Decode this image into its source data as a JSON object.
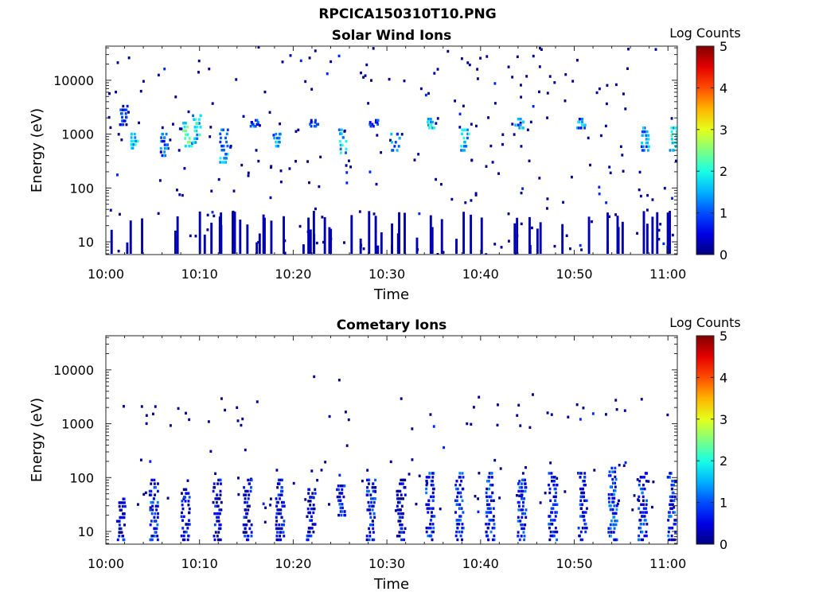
{
  "figure": {
    "title": "RPCICA150310T10.PNG"
  },
  "chart_data": [
    {
      "type": "heatmap",
      "title": "Solar Wind Ions",
      "xlabel": "Time",
      "ylabel": "Energy (eV)",
      "x_ticks": [
        "10:00",
        "10:10",
        "10:20",
        "10:30",
        "10:40",
        "10:50",
        "11:00"
      ],
      "y_ticks": [
        "10",
        "100",
        "1000",
        "10000"
      ],
      "y_scale": "log",
      "xlim": [
        "10:00",
        "11:01"
      ],
      "ylim": [
        5.8,
        43000
      ],
      "colorbar": {
        "label": "Log Counts",
        "range": [
          0,
          5
        ],
        "ticks": [
          "0",
          "1",
          "2",
          "3",
          "4",
          "5"
        ]
      },
      "bursts": [
        {
          "t": 1.8,
          "e_lo": 1500,
          "e_hi": 3300,
          "c": 1.1
        },
        {
          "t": 3.0,
          "e_lo": 550,
          "e_hi": 1000,
          "c": 2.2
        },
        {
          "t": 6.2,
          "e_lo": 400,
          "e_hi": 1000,
          "c": 1.6
        },
        {
          "t": 8.6,
          "e_lo": 600,
          "e_hi": 1600,
          "c": 2.7
        },
        {
          "t": 9.6,
          "e_lo": 700,
          "e_hi": 2200,
          "c": 2.3
        },
        {
          "t": 12.5,
          "e_lo": 300,
          "e_hi": 1200,
          "c": 2.0
        },
        {
          "t": 15.8,
          "e_lo": 1400,
          "e_hi": 1800,
          "c": 1.4
        },
        {
          "t": 18.3,
          "e_lo": 600,
          "e_hi": 1000,
          "c": 2.0
        },
        {
          "t": 22.1,
          "e_lo": 1400,
          "e_hi": 1800,
          "c": 1.5
        },
        {
          "t": 25.2,
          "e_lo": 450,
          "e_hi": 1200,
          "c": 2.2
        },
        {
          "t": 28.5,
          "e_lo": 1400,
          "e_hi": 1800,
          "c": 1.4
        },
        {
          "t": 30.8,
          "e_lo": 500,
          "e_hi": 1000,
          "c": 1.7
        },
        {
          "t": 34.6,
          "e_lo": 1300,
          "e_hi": 1900,
          "c": 2.4
        },
        {
          "t": 38.2,
          "e_lo": 500,
          "e_hi": 1200,
          "c": 2.2
        },
        {
          "t": 44.0,
          "e_lo": 1300,
          "e_hi": 1900,
          "c": 1.9
        },
        {
          "t": 50.6,
          "e_lo": 1300,
          "e_hi": 1900,
          "c": 1.8
        },
        {
          "t": 57.5,
          "e_lo": 500,
          "e_hi": 1300,
          "c": 1.9
        },
        {
          "t": 60.4,
          "e_lo": 500,
          "e_hi": 1300,
          "c": 2.3
        }
      ]
    },
    {
      "type": "heatmap",
      "title": "Cometary Ions",
      "xlabel": "Time",
      "ylabel": "Energy (eV)",
      "x_ticks": [
        "10:00",
        "10:10",
        "10:20",
        "10:30",
        "10:40",
        "10:50",
        "11:00"
      ],
      "y_ticks": [
        "10",
        "100",
        "1000",
        "10000"
      ],
      "y_scale": "log",
      "xlim": [
        "10:00",
        "11:01"
      ],
      "ylim": [
        5.8,
        43000
      ],
      "colorbar": {
        "label": "Log Counts",
        "range": [
          0,
          5
        ],
        "ticks": [
          "0",
          "1",
          "2",
          "3",
          "4",
          "5"
        ]
      },
      "bursts": [
        {
          "t": 1.5,
          "e_lo": 7,
          "e_hi": 40,
          "c": 1.1
        },
        {
          "t": 5.0,
          "e_lo": 7,
          "e_hi": 90,
          "c": 1.3
        },
        {
          "t": 8.4,
          "e_lo": 7,
          "e_hi": 60,
          "c": 1.1
        },
        {
          "t": 11.8,
          "e_lo": 7,
          "e_hi": 90,
          "c": 1.0
        },
        {
          "t": 15.0,
          "e_lo": 7,
          "e_hi": 90,
          "c": 1.1
        },
        {
          "t": 18.5,
          "e_lo": 7,
          "e_hi": 90,
          "c": 1.1
        },
        {
          "t": 21.8,
          "e_lo": 7,
          "e_hi": 60,
          "c": 1.0
        },
        {
          "t": 25.0,
          "e_lo": 20,
          "e_hi": 70,
          "c": 1.2
        },
        {
          "t": 28.2,
          "e_lo": 7,
          "e_hi": 90,
          "c": 1.2
        },
        {
          "t": 31.4,
          "e_lo": 7,
          "e_hi": 90,
          "c": 1.0
        },
        {
          "t": 34.5,
          "e_lo": 7,
          "e_hi": 120,
          "c": 1.3
        },
        {
          "t": 37.6,
          "e_lo": 7,
          "e_hi": 120,
          "c": 1.3
        },
        {
          "t": 40.9,
          "e_lo": 7,
          "e_hi": 120,
          "c": 1.3
        },
        {
          "t": 44.3,
          "e_lo": 7,
          "e_hi": 90,
          "c": 1.3
        },
        {
          "t": 47.6,
          "e_lo": 7,
          "e_hi": 120,
          "c": 1.2
        },
        {
          "t": 50.8,
          "e_lo": 7,
          "e_hi": 120,
          "c": 1.2
        },
        {
          "t": 54.0,
          "e_lo": 7,
          "e_hi": 150,
          "c": 1.4
        },
        {
          "t": 57.2,
          "e_lo": 7,
          "e_hi": 120,
          "c": 1.3
        },
        {
          "t": 60.3,
          "e_lo": 7,
          "e_hi": 120,
          "c": 1.3
        }
      ]
    }
  ]
}
